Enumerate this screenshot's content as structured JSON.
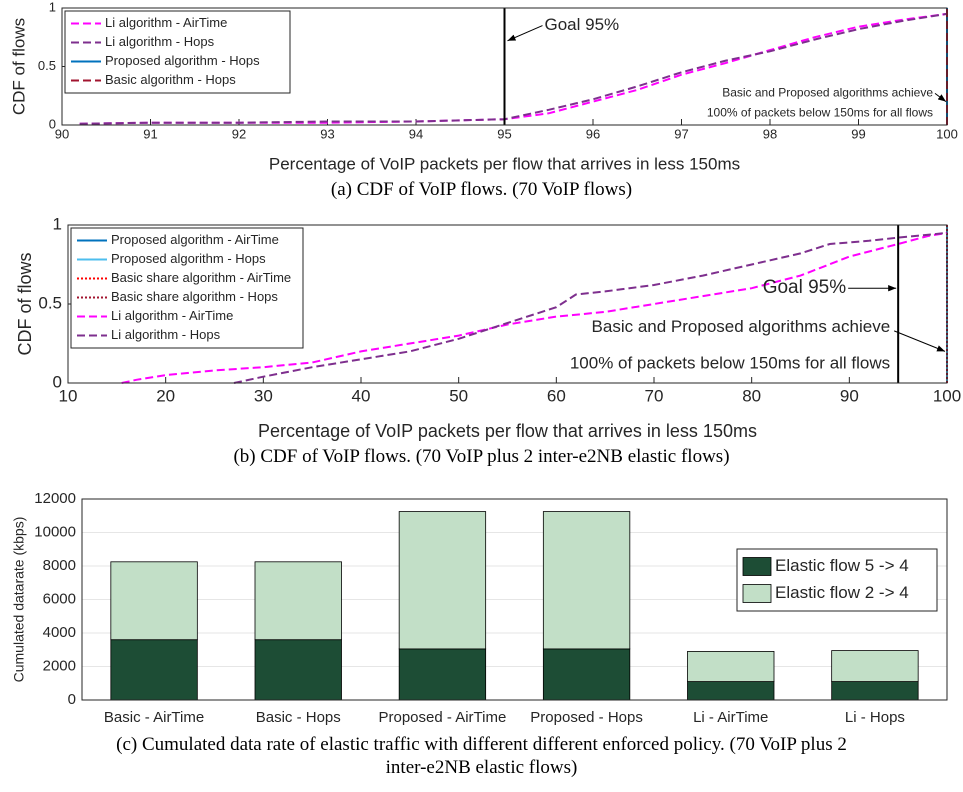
{
  "chart_data": [
    {
      "type": "line",
      "xlabel": "Percentage of VoIP packets per flow that arrives in less 150ms",
      "ylabel": "CDF of flows",
      "caption": "(a) CDF of VoIP flows. (70 VoIP flows)",
      "xlim": [
        90,
        100
      ],
      "xticks": [
        90,
        91,
        92,
        93,
        94,
        95,
        96,
        97,
        98,
        99,
        100
      ],
      "ylim": [
        0,
        1
      ],
      "yticks": [
        0,
        0.5,
        1
      ],
      "goal_line": 95,
      "annotations": [
        "Goal 95%",
        "Basic and Proposed algorithms achieve",
        "100% of packets below 150ms for all flows"
      ],
      "legend": "upper left",
      "series": [
        {
          "name": "Li algorithm - AirTime",
          "color": "#ff00ff",
          "style": "dashed",
          "x": [
            90.2,
            91,
            92,
            93,
            94,
            95,
            95.5,
            96,
            96.5,
            97,
            97.5,
            98,
            98.5,
            99,
            99.5,
            100
          ],
          "values": [
            0.01,
            0.02,
            0.02,
            0.02,
            0.03,
            0.05,
            0.1,
            0.2,
            0.3,
            0.43,
            0.53,
            0.64,
            0.75,
            0.84,
            0.9,
            0.95
          ]
        },
        {
          "name": "Li algorithm - Hops",
          "color": "#7e2f8e",
          "style": "dashed",
          "x": [
            90.2,
            91,
            92,
            93,
            94,
            95,
            95.5,
            96,
            96.5,
            97,
            97.5,
            98,
            98.5,
            99,
            99.5,
            100
          ],
          "values": [
            0.01,
            0.02,
            0.02,
            0.03,
            0.03,
            0.05,
            0.13,
            0.22,
            0.33,
            0.45,
            0.55,
            0.63,
            0.73,
            0.82,
            0.89,
            0.95
          ]
        },
        {
          "name": "Proposed algorithm - Hops",
          "color": "#0072bd",
          "style": "solid",
          "x": [
            100,
            100
          ],
          "values": [
            0,
            1
          ]
        },
        {
          "name": "Basic algorithm - Hops",
          "color": "#a2142f",
          "style": "dashed",
          "x": [
            100,
            100
          ],
          "values": [
            0,
            1
          ]
        }
      ]
    },
    {
      "type": "line",
      "xlabel": "Percentage of VoIP packets per flow that arrives in less 150ms",
      "ylabel": "CDF of flows",
      "caption": "(b) CDF of VoIP flows. (70 VoIP plus 2 inter-e2NB elastic flows)",
      "xlim": [
        10,
        100
      ],
      "xticks": [
        10,
        20,
        30,
        40,
        50,
        60,
        70,
        80,
        90,
        100
      ],
      "ylim": [
        0,
        1
      ],
      "yticks": [
        0,
        0.5,
        1
      ],
      "goal_line": 95,
      "annotations": [
        "Goal 95%",
        "Basic and Proposed algorithms achieve",
        "100% of packets below 150ms for all flows"
      ],
      "legend": "upper left",
      "series": [
        {
          "name": "Proposed algorithm - AirTime",
          "color": "#0072bd",
          "style": "solid",
          "x": [
            100,
            100
          ],
          "values": [
            0,
            1
          ]
        },
        {
          "name": "Proposed algorithm - Hops",
          "color": "#4dbeee",
          "style": "solid",
          "x": [
            100,
            100
          ],
          "values": [
            0,
            1
          ]
        },
        {
          "name": "Basic share algorithm - AirTime",
          "color": "#ff0000",
          "style": "dotted",
          "x": [
            100,
            100
          ],
          "values": [
            0,
            1
          ]
        },
        {
          "name": "Basic share algorithm - Hops",
          "color": "#a2142f",
          "style": "dotted",
          "x": [
            100,
            100
          ],
          "values": [
            0,
            1
          ]
        },
        {
          "name": "Li algorithm - AirTime",
          "color": "#ff00ff",
          "style": "dashed",
          "x": [
            15.5,
            17,
            20,
            25,
            30,
            35,
            40,
            45,
            50,
            55,
            60,
            65,
            70,
            75,
            80,
            85,
            90,
            95,
            98,
            100
          ],
          "values": [
            0,
            0.02,
            0.05,
            0.08,
            0.1,
            0.13,
            0.2,
            0.25,
            0.3,
            0.37,
            0.42,
            0.45,
            0.5,
            0.55,
            0.6,
            0.68,
            0.8,
            0.88,
            0.93,
            0.95
          ]
        },
        {
          "name": "Li algorithm - Hops",
          "color": "#7e2f8e",
          "style": "dashed",
          "x": [
            27,
            30,
            35,
            40,
            45,
            50,
            55,
            60,
            62,
            65,
            70,
            75,
            80,
            85,
            88,
            92,
            95,
            100
          ],
          "values": [
            0,
            0.04,
            0.1,
            0.15,
            0.2,
            0.28,
            0.38,
            0.48,
            0.56,
            0.58,
            0.62,
            0.68,
            0.75,
            0.82,
            0.88,
            0.9,
            0.92,
            0.95
          ]
        }
      ]
    },
    {
      "type": "stacked_bar",
      "ylabel": "Cumulated datarate (kbps)",
      "caption": "(c) Cumulated data rate of elastic traffic with different different enforced policy. (70 VoIP plus 2 inter-e2NB elastic flows)",
      "categories": [
        "Basic - AirTime",
        "Basic - Hops",
        "Proposed - AirTime",
        "Proposed - Hops",
        "Li - AirTime",
        "Li - Hops"
      ],
      "ylim": [
        0,
        12000
      ],
      "yticks": [
        0,
        2000,
        4000,
        6000,
        8000,
        10000,
        12000
      ],
      "grid": true,
      "legend": "upper right",
      "series": [
        {
          "name": "Elastic flow 5 -> 4",
          "color": "#1d4d35",
          "values": [
            3600,
            3600,
            3050,
            3050,
            1100,
            1100
          ]
        },
        {
          "name": "Elastic flow 2 -> 4",
          "color": "#c2dfc7",
          "values": [
            4650,
            4650,
            8200,
            8200,
            1800,
            1850
          ]
        }
      ]
    }
  ]
}
